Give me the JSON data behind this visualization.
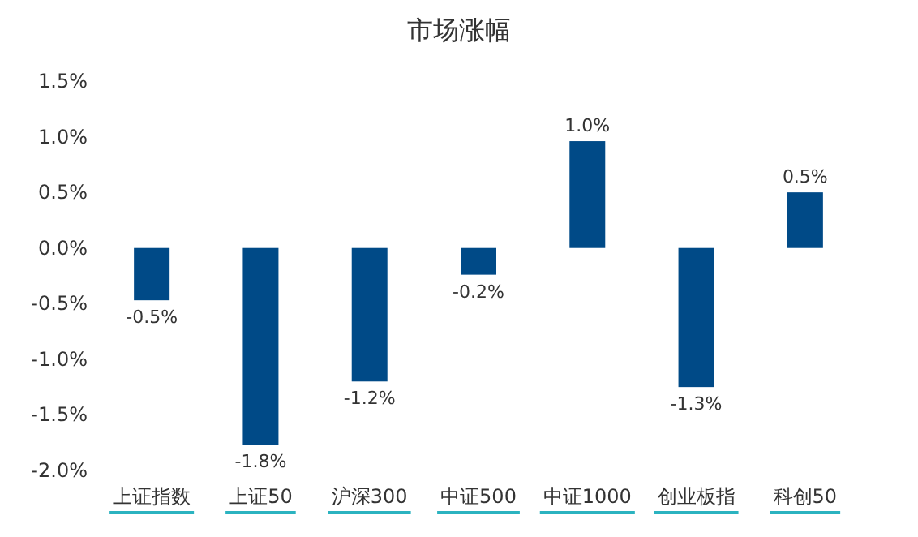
{
  "chart_data": {
    "type": "bar",
    "title": "市场涨幅",
    "categories": [
      "上证指数",
      "上证50",
      "沪深300",
      "中证500",
      "中证1000",
      "创业板指",
      "科创50"
    ],
    "values": [
      -0.47,
      -1.77,
      -1.2,
      -0.24,
      0.96,
      -1.25,
      0.5
    ],
    "value_labels": [
      "-0.5%",
      "-1.8%",
      "-1.2%",
      "-0.2%",
      "1.0%",
      "-1.3%",
      "0.5%"
    ],
    "color": "#004a87",
    "ylim": [
      -2.0,
      1.5
    ],
    "yticks": [
      {
        "value": 1.5,
        "label": "1.5%"
      },
      {
        "value": 1.0,
        "label": "1.0%"
      },
      {
        "value": 0.5,
        "label": "0.5%"
      },
      {
        "value": 0.0,
        "label": "0.0%"
      },
      {
        "value": -0.5,
        "label": "-0.5%"
      },
      {
        "value": -1.0,
        "label": "-1.0%"
      },
      {
        "value": -1.5,
        "label": "-1.5%"
      },
      {
        "value": -2.0,
        "label": "-2.0%"
      }
    ]
  }
}
